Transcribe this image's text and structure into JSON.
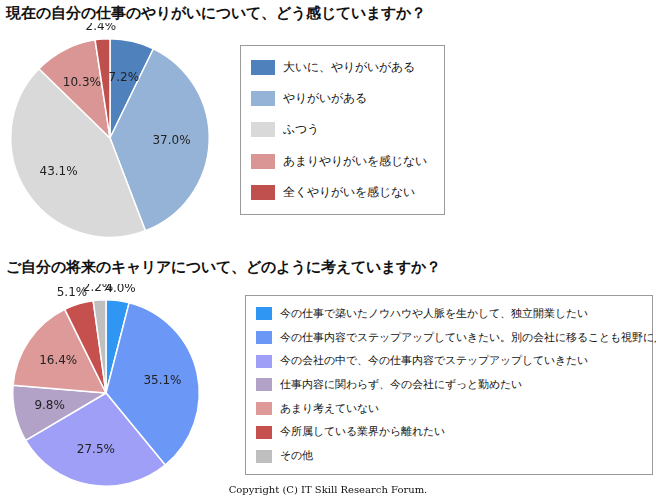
{
  "chart_data": [
    {
      "type": "pie",
      "title": "現在の自分の仕事のやりがいについて、どう感じていますか？",
      "categories": [
        "大いに、やりがいがある",
        "やりがいがある",
        "ふつう",
        "あまりやりがいを感じない",
        "全くやりがいを感じない"
      ],
      "values": [
        7.2,
        37.0,
        43.1,
        10.3,
        2.4
      ],
      "value_labels": [
        "7.2%",
        "37.0%",
        "43.1%",
        "10.3%",
        "2.4%"
      ],
      "colors": [
        "#4f81bd",
        "#95b3d7",
        "#d9d9d9",
        "#d99694",
        "#c0504d"
      ],
      "data_labels": true,
      "legend": "right"
    },
    {
      "type": "pie",
      "title": "ご自分の将来のキャリアについて、どのように考えていますか？",
      "categories": [
        "今の仕事で築いたノウハウや人脈を生かして、独立開業したい",
        "今の仕事内容でステップアップしていきたい。別の会社に移ることも視野に入れている",
        "今の会社の中で、今の仕事内容でステップアップしていきたい",
        "仕事内容に関わらず、今の会社にずっと勤めたい",
        "あまり考えていない",
        "今所属している業界から離れたい",
        "その他"
      ],
      "values": [
        4.0,
        35.1,
        27.5,
        9.8,
        16.4,
        5.1,
        2.2
      ],
      "value_labels": [
        "4.0%",
        "35.1%",
        "27.5%",
        "9.8%",
        "16.4%",
        "5.1%",
        "2.2%"
      ],
      "colors": [
        "#2f96f3",
        "#6b97f7",
        "#9f9ff7",
        "#b3a2c7",
        "#dd9a98",
        "#c6504e",
        "#bfbfbf"
      ],
      "data_labels": true,
      "legend": "right"
    }
  ],
  "footer": "Copyright (C) IT Skill Research Forum."
}
